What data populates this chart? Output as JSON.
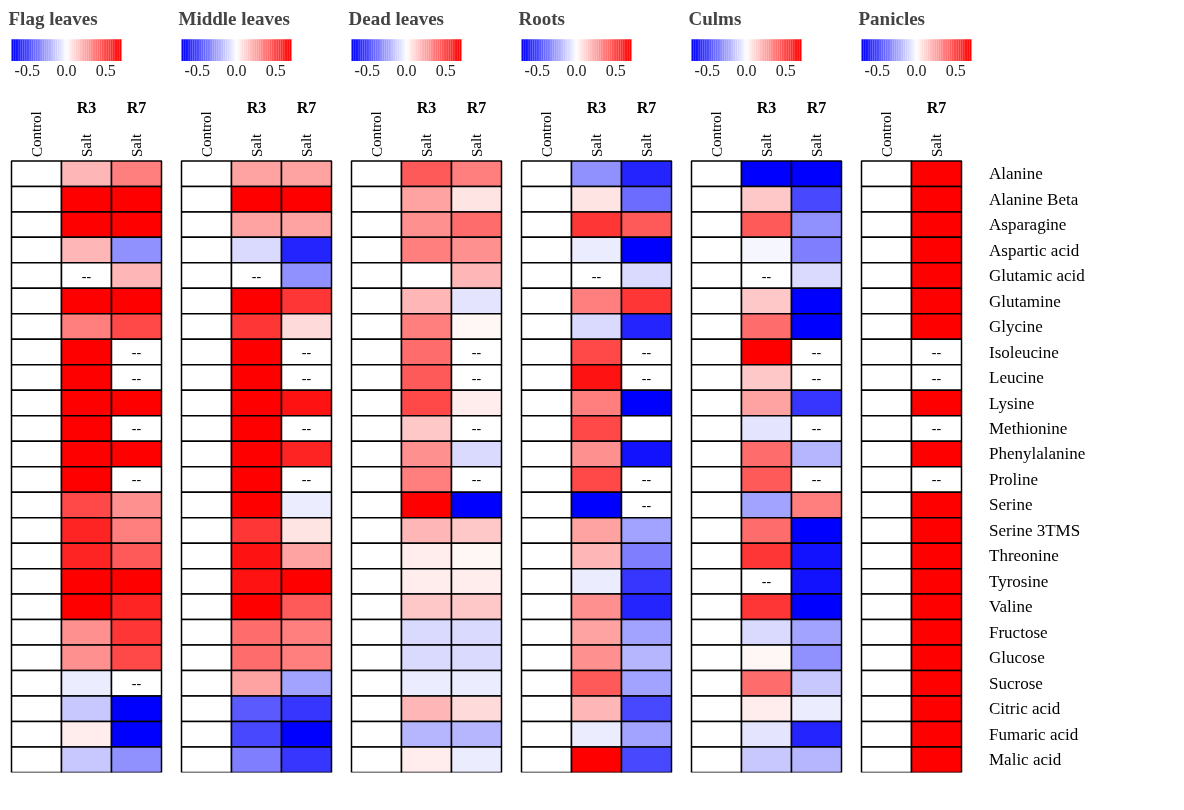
{
  "chart_data": [
    {
      "type": "heatmap",
      "title": "Flag leaves",
      "categories": [
        "Control",
        "Salt",
        "Salt"
      ],
      "annotations": [
        "R3",
        "R7"
      ],
      "clim": [
        -0.7,
        0.7
      ],
      "cticks": [
        {
          "value": -0.5,
          "label": "-0.5"
        },
        {
          "value": 0,
          "label": "0.0"
        },
        {
          "value": 0.5,
          "label": "0.5"
        }
      ],
      "y_categories": [
        null,
        null,
        null,
        null,
        null,
        null,
        null,
        null,
        null,
        null,
        null,
        null,
        null,
        null,
        null,
        null,
        null,
        null,
        null,
        null,
        null,
        null,
        null,
        null
      ],
      "cells": [
        [
          0,
          0.2,
          0.35
        ],
        [
          0,
          0.7,
          0.7
        ],
        [
          0,
          0.7,
          0.7
        ],
        [
          0,
          0.2,
          -0.3
        ],
        [
          0,
          null,
          0.2
        ],
        [
          0,
          0.7,
          0.7
        ],
        [
          0,
          0.35,
          0.5
        ],
        [
          0,
          0.7,
          null
        ],
        [
          0,
          0.7,
          null
        ],
        [
          0,
          0.7,
          0.7
        ],
        [
          0,
          0.7,
          null
        ],
        [
          0,
          0.7,
          0.7
        ],
        [
          0,
          0.7,
          null
        ],
        [
          0,
          0.5,
          0.3
        ],
        [
          0,
          0.6,
          0.35
        ],
        [
          0,
          0.6,
          0.45
        ],
        [
          0,
          0.7,
          0.7
        ],
        [
          0,
          0.7,
          0.6
        ],
        [
          0,
          0.3,
          0.55
        ],
        [
          0,
          0.3,
          0.5
        ],
        [
          0,
          -0.05,
          null
        ],
        [
          0,
          -0.15,
          -0.7
        ],
        [
          0,
          0.05,
          -0.7
        ],
        [
          0,
          -0.15,
          -0.3
        ]
      ],
      "cell_labels": [
        [
          null,
          null,
          null
        ],
        [
          null,
          null,
          null
        ],
        [
          null,
          null,
          null
        ],
        [
          null,
          null,
          null
        ],
        [
          null,
          "--",
          null
        ],
        [
          null,
          null,
          null
        ],
        [
          null,
          null,
          null
        ],
        [
          null,
          null,
          "--"
        ],
        [
          null,
          null,
          "--"
        ],
        [
          null,
          null,
          null
        ],
        [
          null,
          null,
          "--"
        ],
        [
          null,
          null,
          null
        ],
        [
          null,
          null,
          "--"
        ],
        [
          null,
          null,
          null
        ],
        [
          null,
          null,
          null
        ],
        [
          null,
          null,
          null
        ],
        [
          null,
          null,
          null
        ],
        [
          null,
          null,
          null
        ],
        [
          null,
          null,
          null
        ],
        [
          null,
          null,
          null
        ],
        [
          null,
          null,
          "--"
        ],
        [
          null,
          null,
          null
        ],
        [
          null,
          null,
          null
        ],
        [
          null,
          null,
          null
        ]
      ]
    },
    {
      "type": "heatmap",
      "title": "Middle leaves",
      "categories": [
        "Control",
        "Salt",
        "Salt"
      ],
      "annotations": [
        "R3",
        "R7"
      ],
      "clim": [
        -0.7,
        0.7
      ],
      "cticks": [
        {
          "value": -0.5,
          "label": "-0.5"
        },
        {
          "value": 0,
          "label": "0.0"
        },
        {
          "value": 0.5,
          "label": "0.5"
        }
      ],
      "y_categories": [
        null,
        null,
        null,
        null,
        null,
        null,
        null,
        null,
        null,
        null,
        null,
        null,
        null,
        null,
        null,
        null,
        null,
        null,
        null,
        null,
        null,
        null,
        null,
        null
      ],
      "cells": [
        [
          0,
          0.25,
          0.25
        ],
        [
          0,
          0.7,
          0.7
        ],
        [
          0,
          0.25,
          0.25
        ],
        [
          0,
          -0.1,
          -0.6
        ],
        [
          0,
          null,
          -0.3
        ],
        [
          0,
          0.7,
          0.55
        ],
        [
          0,
          0.55,
          0.1
        ],
        [
          0,
          0.7,
          null
        ],
        [
          0,
          0.7,
          null
        ],
        [
          0,
          0.7,
          0.65
        ],
        [
          0,
          0.7,
          null
        ],
        [
          0,
          0.7,
          0.6
        ],
        [
          0,
          0.7,
          null
        ],
        [
          0,
          0.7,
          -0.05
        ],
        [
          0,
          0.55,
          0.07
        ],
        [
          0,
          0.65,
          0.25
        ],
        [
          0,
          0.65,
          0.7
        ],
        [
          0,
          0.7,
          0.45
        ],
        [
          0,
          0.4,
          0.35
        ],
        [
          0,
          0.4,
          0.35
        ],
        [
          0,
          0.25,
          -0.25
        ],
        [
          0,
          -0.45,
          -0.55
        ],
        [
          0,
          -0.5,
          -0.7
        ],
        [
          0,
          -0.35,
          -0.55
        ]
      ],
      "cell_labels": [
        [
          null,
          null,
          null
        ],
        [
          null,
          null,
          null
        ],
        [
          null,
          null,
          null
        ],
        [
          null,
          null,
          null
        ],
        [
          null,
          "--",
          null
        ],
        [
          null,
          null,
          null
        ],
        [
          null,
          null,
          null
        ],
        [
          null,
          null,
          "--"
        ],
        [
          null,
          null,
          "--"
        ],
        [
          null,
          null,
          null
        ],
        [
          null,
          null,
          "--"
        ],
        [
          null,
          null,
          null
        ],
        [
          null,
          null,
          "--"
        ],
        [
          null,
          null,
          null
        ],
        [
          null,
          null,
          null
        ],
        [
          null,
          null,
          null
        ],
        [
          null,
          null,
          null
        ],
        [
          null,
          null,
          null
        ],
        [
          null,
          null,
          null
        ],
        [
          null,
          null,
          null
        ],
        [
          null,
          null,
          null
        ],
        [
          null,
          null,
          null
        ],
        [
          null,
          null,
          null
        ],
        [
          null,
          null,
          null
        ]
      ]
    },
    {
      "type": "heatmap",
      "title": "Dead leaves",
      "categories": [
        "Control",
        "Salt",
        "Salt"
      ],
      "annotations": [
        "R3",
        "R7"
      ],
      "clim": [
        -0.7,
        0.7
      ],
      "cticks": [
        {
          "value": -0.5,
          "label": "-0.5"
        },
        {
          "value": 0,
          "label": "0.0"
        },
        {
          "value": 0.5,
          "label": "0.5"
        }
      ],
      "y_categories": [
        null,
        null,
        null,
        null,
        null,
        null,
        null,
        null,
        null,
        null,
        null,
        null,
        null,
        null,
        null,
        null,
        null,
        null,
        null,
        null,
        null,
        null,
        null,
        null
      ],
      "cells": [
        [
          0,
          0.45,
          0.35
        ],
        [
          0,
          0.25,
          0.07
        ],
        [
          0,
          0.3,
          0.4
        ],
        [
          0,
          0.35,
          0.3
        ],
        [
          0,
          0.0,
          0.2
        ],
        [
          0,
          0.2,
          -0.07
        ],
        [
          0,
          0.35,
          0.02
        ],
        [
          0,
          0.4,
          null
        ],
        [
          0,
          0.45,
          null
        ],
        [
          0,
          0.5,
          0.05
        ],
        [
          0,
          0.15,
          null
        ],
        [
          0,
          0.3,
          -0.1
        ],
        [
          0,
          0.35,
          null
        ],
        [
          0,
          0.7,
          -0.7
        ],
        [
          0,
          0.2,
          0.15
        ],
        [
          0,
          0.05,
          0.02
        ],
        [
          0,
          0.05,
          0.05
        ],
        [
          0,
          0.15,
          0.15
        ],
        [
          0,
          -0.1,
          -0.1
        ],
        [
          0,
          -0.1,
          -0.1
        ],
        [
          0,
          -0.05,
          -0.05
        ],
        [
          0,
          0.2,
          0.1
        ],
        [
          0,
          -0.2,
          -0.2
        ],
        [
          0,
          0.05,
          -0.05
        ]
      ],
      "cell_labels": [
        [
          null,
          null,
          null
        ],
        [
          null,
          null,
          null
        ],
        [
          null,
          null,
          null
        ],
        [
          null,
          null,
          null
        ],
        [
          null,
          null,
          null
        ],
        [
          null,
          null,
          null
        ],
        [
          null,
          null,
          null
        ],
        [
          null,
          null,
          "--"
        ],
        [
          null,
          null,
          "--"
        ],
        [
          null,
          null,
          null
        ],
        [
          null,
          null,
          "--"
        ],
        [
          null,
          null,
          null
        ],
        [
          null,
          null,
          "--"
        ],
        [
          null,
          null,
          null
        ],
        [
          null,
          null,
          null
        ],
        [
          null,
          null,
          null
        ],
        [
          null,
          null,
          null
        ],
        [
          null,
          null,
          null
        ],
        [
          null,
          null,
          null
        ],
        [
          null,
          null,
          null
        ],
        [
          null,
          null,
          null
        ],
        [
          null,
          null,
          null
        ],
        [
          null,
          null,
          null
        ],
        [
          null,
          null,
          null
        ]
      ]
    },
    {
      "type": "heatmap",
      "title": "Roots",
      "categories": [
        "Control",
        "Salt",
        "Salt"
      ],
      "annotations": [
        "R3",
        "R7"
      ],
      "clim": [
        -0.7,
        0.7
      ],
      "cticks": [
        {
          "value": -0.5,
          "label": "-0.5"
        },
        {
          "value": 0,
          "label": "0.0"
        },
        {
          "value": 0.5,
          "label": "0.5"
        }
      ],
      "y_categories": [
        null,
        null,
        null,
        null,
        null,
        null,
        null,
        null,
        null,
        null,
        null,
        null,
        null,
        null,
        null,
        null,
        null,
        null,
        null,
        null,
        null,
        null,
        null,
        null
      ],
      "cells": [
        [
          0,
          -0.3,
          -0.6
        ],
        [
          0,
          0.07,
          -0.4
        ],
        [
          0,
          0.55,
          0.45
        ],
        [
          0,
          -0.05,
          -0.7
        ],
        [
          0,
          null,
          -0.1
        ],
        [
          0,
          0.35,
          0.55
        ],
        [
          0,
          -0.1,
          -0.6
        ],
        [
          0,
          0.5,
          null
        ],
        [
          0,
          0.65,
          null
        ],
        [
          0,
          0.35,
          -0.7
        ],
        [
          0,
          0.5,
          0.0
        ],
        [
          0,
          0.3,
          -0.65
        ],
        [
          0,
          0.5,
          null
        ],
        [
          0,
          -0.7,
          null
        ],
        [
          0,
          0.25,
          -0.25
        ],
        [
          0,
          0.2,
          -0.35
        ],
        [
          0,
          -0.05,
          -0.55
        ],
        [
          0,
          0.3,
          -0.6
        ],
        [
          0,
          0.25,
          -0.25
        ],
        [
          0,
          0.3,
          -0.2
        ],
        [
          0,
          0.45,
          -0.25
        ],
        [
          0,
          0.2,
          -0.5
        ],
        [
          0,
          -0.05,
          -0.25
        ],
        [
          0,
          0.7,
          -0.5
        ]
      ],
      "cell_labels": [
        [
          null,
          null,
          null
        ],
        [
          null,
          null,
          null
        ],
        [
          null,
          null,
          null
        ],
        [
          null,
          null,
          null
        ],
        [
          null,
          "--",
          null
        ],
        [
          null,
          null,
          null
        ],
        [
          null,
          null,
          null
        ],
        [
          null,
          null,
          "--"
        ],
        [
          null,
          null,
          "--"
        ],
        [
          null,
          null,
          null
        ],
        [
          null,
          null,
          null
        ],
        [
          null,
          null,
          null
        ],
        [
          null,
          null,
          "--"
        ],
        [
          null,
          null,
          "--"
        ],
        [
          null,
          null,
          null
        ],
        [
          null,
          null,
          null
        ],
        [
          null,
          null,
          null
        ],
        [
          null,
          null,
          null
        ],
        [
          null,
          null,
          null
        ],
        [
          null,
          null,
          null
        ],
        [
          null,
          null,
          null
        ],
        [
          null,
          null,
          null
        ],
        [
          null,
          null,
          null
        ],
        [
          null,
          null,
          null
        ]
      ]
    },
    {
      "type": "heatmap",
      "title": "Culms",
      "categories": [
        "Control",
        "Salt",
        "Salt"
      ],
      "annotations": [
        "R3",
        "R7"
      ],
      "clim": [
        -0.7,
        0.7
      ],
      "cticks": [
        {
          "value": -0.5,
          "label": "-0.5"
        },
        {
          "value": 0,
          "label": "0.0"
        },
        {
          "value": 0.5,
          "label": "0.5"
        }
      ],
      "y_categories": [
        null,
        null,
        null,
        null,
        null,
        null,
        null,
        null,
        null,
        null,
        null,
        null,
        null,
        null,
        null,
        null,
        null,
        null,
        null,
        null,
        null,
        null,
        null,
        null
      ],
      "cells": [
        [
          0,
          -0.7,
          -0.7
        ],
        [
          0,
          0.15,
          -0.5
        ],
        [
          0,
          0.45,
          -0.3
        ],
        [
          0,
          -0.02,
          -0.35
        ],
        [
          0,
          null,
          -0.1
        ],
        [
          0,
          0.15,
          -0.7
        ],
        [
          0,
          0.4,
          -0.7
        ],
        [
          0,
          0.7,
          null
        ],
        [
          0,
          0.15,
          null
        ],
        [
          0,
          0.25,
          -0.55
        ],
        [
          0,
          -0.07,
          null
        ],
        [
          0,
          0.4,
          -0.2
        ],
        [
          0,
          0.45,
          null
        ],
        [
          0,
          -0.25,
          0.35
        ],
        [
          0,
          0.4,
          -0.7
        ],
        [
          0,
          0.55,
          -0.65
        ],
        [
          0,
          null,
          -0.65
        ],
        [
          0,
          0.55,
          -0.7
        ],
        [
          0,
          -0.1,
          -0.25
        ],
        [
          0,
          0.02,
          -0.3
        ],
        [
          0,
          0.4,
          -0.15
        ],
        [
          0,
          0.05,
          -0.05
        ],
        [
          0,
          -0.07,
          -0.6
        ],
        [
          0,
          -0.15,
          -0.2
        ]
      ],
      "cell_labels": [
        [
          null,
          null,
          null
        ],
        [
          null,
          null,
          null
        ],
        [
          null,
          null,
          null
        ],
        [
          null,
          null,
          null
        ],
        [
          null,
          "--",
          null
        ],
        [
          null,
          null,
          null
        ],
        [
          null,
          null,
          null
        ],
        [
          null,
          null,
          "--"
        ],
        [
          null,
          null,
          "--"
        ],
        [
          null,
          null,
          null
        ],
        [
          null,
          null,
          "--"
        ],
        [
          null,
          null,
          null
        ],
        [
          null,
          null,
          "--"
        ],
        [
          null,
          null,
          null
        ],
        [
          null,
          null,
          null
        ],
        [
          null,
          null,
          null
        ],
        [
          null,
          "--",
          null
        ],
        [
          null,
          null,
          null
        ],
        [
          null,
          null,
          null
        ],
        [
          null,
          null,
          null
        ],
        [
          null,
          null,
          null
        ],
        [
          null,
          null,
          null
        ],
        [
          null,
          null,
          null
        ],
        [
          null,
          null,
          null
        ]
      ]
    },
    {
      "type": "heatmap",
      "title": "Panicles",
      "categories": [
        "Control",
        "Salt"
      ],
      "annotations": [
        "R7"
      ],
      "clim": [
        -0.7,
        0.7
      ],
      "cticks": [
        {
          "value": -0.5,
          "label": "-0.5"
        },
        {
          "value": 0,
          "label": "0.0"
        },
        {
          "value": 0.5,
          "label": "0.5"
        }
      ],
      "y_categories": [
        null,
        null,
        null,
        null,
        null,
        null,
        null,
        null,
        null,
        null,
        null,
        null,
        null,
        null,
        null,
        null,
        null,
        null,
        null,
        null,
        null,
        null,
        null,
        null
      ],
      "y2_categories": [
        "Alanine",
        "Alanine Beta",
        "Asparagine",
        "Aspartic acid",
        "Glutamic acid",
        "Glutamine",
        "Glycine",
        "Isoleucine",
        "Leucine",
        "Lysine",
        "Methionine",
        "Phenylalanine",
        "Proline",
        "Serine",
        "Serine 3TMS",
        "Threonine",
        "Tyrosine",
        "Valine",
        "Fructose",
        "Glucose",
        "Sucrose",
        "Citric acid",
        "Fumaric acid",
        "Malic acid"
      ],
      "cells": [
        [
          0,
          0.7
        ],
        [
          0,
          0.7
        ],
        [
          0,
          0.7
        ],
        [
          0,
          0.7
        ],
        [
          0,
          0.7
        ],
        [
          0,
          0.7
        ],
        [
          0,
          0.7
        ],
        [
          0,
          null
        ],
        [
          0,
          null
        ],
        [
          0,
          0.7
        ],
        [
          0,
          null
        ],
        [
          0,
          0.7
        ],
        [
          0,
          null
        ],
        [
          0,
          0.7
        ],
        [
          0,
          0.7
        ],
        [
          0,
          0.7
        ],
        [
          0,
          0.7
        ],
        [
          0,
          0.7
        ],
        [
          0,
          0.7
        ],
        [
          0,
          0.7
        ],
        [
          0,
          0.7
        ],
        [
          0,
          0.7
        ],
        [
          0,
          0.7
        ],
        [
          0,
          0.7
        ]
      ],
      "cell_labels": [
        [
          null,
          null
        ],
        [
          null,
          null
        ],
        [
          null,
          null
        ],
        [
          null,
          null
        ],
        [
          null,
          null
        ],
        [
          null,
          null
        ],
        [
          null,
          null
        ],
        [
          null,
          "--"
        ],
        [
          null,
          "--"
        ],
        [
          null,
          null
        ],
        [
          null,
          "--"
        ],
        [
          null,
          null
        ],
        [
          null,
          "--"
        ],
        [
          null,
          null
        ],
        [
          null,
          null
        ],
        [
          null,
          null
        ],
        [
          null,
          null
        ],
        [
          null,
          null
        ],
        [
          null,
          null
        ],
        [
          null,
          null
        ],
        [
          null,
          null
        ],
        [
          null,
          null
        ],
        [
          null,
          null
        ],
        [
          null,
          null
        ]
      ]
    }
  ]
}
